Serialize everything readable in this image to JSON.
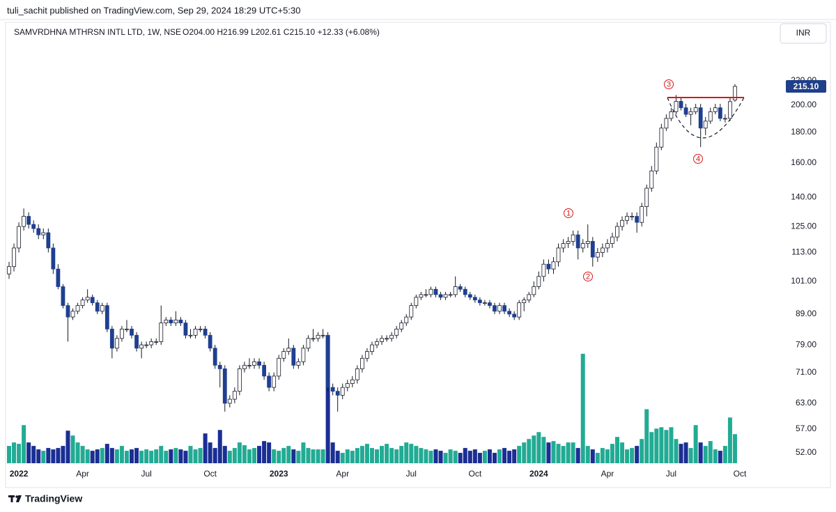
{
  "chart_data": {
    "type": "candlestick",
    "source": "tuli_sachit published on TradingView.com, Sep 29, 2024 18:29 UTC+5:30",
    "title": "SAMVRDHNA MTHRSN INTL LTD, 1W, NSE",
    "subtitle": "O204.00 H216.99 L202.61 C215.10 +12.33 (+6.08%)",
    "currency": "INR",
    "brand": "TradingView",
    "log_scale": true,
    "grid": false,
    "up_color": "#ffffff",
    "down_color": "#1f3f91",
    "wick_color": "#131722",
    "volume_up_color": "#22ab94",
    "volume_down_color": "#1a2e93",
    "resistance": 206,
    "resistance_color": "#e01414",
    "last_price_label": "215.10",
    "last_price_color": "#1e3f8a",
    "annotations": [
      {
        "text": "1"
      },
      {
        "text": "2"
      },
      {
        "text": "3"
      },
      {
        "text": "4"
      }
    ],
    "ylim": [
      49.67,
      273.5
    ],
    "yticks": [
      {
        "value": 52,
        "label": "52.00"
      },
      {
        "value": 57,
        "label": "57.00"
      },
      {
        "value": 63,
        "label": "63.00"
      },
      {
        "value": 71,
        "label": "71.00"
      },
      {
        "value": 79,
        "label": "79.00"
      },
      {
        "value": 89,
        "label": "89.00"
      },
      {
        "value": 101,
        "label": "101.00"
      },
      {
        "value": 113,
        "label": "113.00"
      },
      {
        "value": 125,
        "label": "125.00"
      },
      {
        "value": 140,
        "label": "140.00"
      },
      {
        "value": 160,
        "label": "160.00"
      },
      {
        "value": 180,
        "label": "180.00"
      },
      {
        "value": 200,
        "label": "200.00"
      },
      {
        "value": 220,
        "label": "220.00"
      }
    ],
    "categories": [
      null,
      null,
      "2022",
      null,
      null,
      null,
      null,
      null,
      null,
      null,
      null,
      null,
      null,
      null,
      null,
      "Apr",
      null,
      null,
      null,
      null,
      null,
      null,
      null,
      null,
      null,
      null,
      null,
      null,
      "Jul",
      null,
      null,
      null,
      null,
      null,
      null,
      null,
      null,
      null,
      null,
      null,
      null,
      "Oct",
      null,
      null,
      null,
      null,
      null,
      null,
      null,
      null,
      null,
      null,
      null,
      null,
      null,
      "2023",
      null,
      null,
      null,
      null,
      null,
      null,
      null,
      null,
      null,
      null,
      null,
      null,
      "Apr",
      null,
      null,
      null,
      null,
      null,
      null,
      null,
      null,
      null,
      null,
      null,
      null,
      null,
      "Jul",
      null,
      null,
      null,
      null,
      null,
      null,
      null,
      null,
      null,
      null,
      null,
      null,
      "Oct",
      null,
      null,
      null,
      null,
      null,
      null,
      null,
      null,
      null,
      null,
      null,
      null,
      "2024",
      null,
      null,
      null,
      null,
      null,
      null,
      null,
      null,
      null,
      null,
      null,
      null,
      null,
      "Apr",
      null,
      null,
      null,
      null,
      null,
      null,
      null,
      null,
      null,
      null,
      null,
      null,
      "Jul",
      null,
      null,
      null,
      null,
      null,
      null,
      null,
      null,
      null,
      null,
      null,
      null,
      null,
      "Oct"
    ],
    "open": [
      104,
      107,
      115,
      125,
      130,
      126,
      124,
      121,
      122,
      115,
      106,
      99,
      92,
      88,
      90,
      92,
      94,
      95,
      93,
      90,
      92,
      84,
      78,
      81,
      84,
      84,
      82,
      78,
      79,
      79,
      80,
      80,
      86,
      87,
      86,
      87,
      86,
      82,
      82,
      84,
      84,
      82,
      78,
      73,
      72,
      63,
      64,
      66,
      72,
      73,
      73,
      74,
      73,
      70,
      67,
      70,
      75,
      77,
      78,
      73,
      74,
      78,
      81,
      81,
      82,
      82,
      67,
      66,
      65,
      67,
      68,
      69,
      72,
      75,
      77,
      79,
      80,
      81,
      81,
      82,
      84,
      86,
      88,
      92,
      95,
      96,
      96,
      98,
      96,
      95,
      96,
      96,
      99,
      98,
      96,
      95,
      94,
      93,
      93,
      92,
      90,
      92,
      90,
      89,
      88,
      93,
      94,
      96,
      99,
      103,
      108,
      106,
      109,
      115,
      117,
      118,
      121,
      115,
      117,
      118,
      111,
      113,
      115,
      117,
      120,
      125,
      128,
      130,
      130,
      127,
      135,
      145,
      155,
      170,
      183,
      190,
      195,
      203,
      198,
      193,
      195,
      198,
      183,
      188,
      195,
      198,
      190,
      190,
      204,
      null
    ],
    "high": [
      109,
      117,
      127,
      134,
      132,
      128,
      126,
      124,
      124,
      117,
      108,
      100,
      93,
      91,
      93,
      95,
      98,
      96,
      94,
      93,
      93,
      85,
      82,
      85,
      87,
      85,
      83,
      80,
      80,
      81,
      81,
      92,
      88,
      88,
      90,
      88,
      87,
      84,
      85,
      85,
      85,
      83,
      79,
      74,
      73,
      65,
      67,
      73,
      74,
      75,
      75,
      75,
      74,
      71,
      71,
      76,
      78,
      81,
      79,
      75,
      79,
      82,
      84,
      83,
      84,
      83,
      68,
      67,
      68,
      69,
      70,
      73,
      76,
      78,
      80,
      81,
      82,
      82,
      83,
      85,
      87,
      89,
      93,
      96,
      97,
      98,
      99,
      99,
      97,
      97,
      97,
      103,
      100,
      99,
      97,
      96,
      95,
      94,
      94,
      93,
      93,
      93,
      91,
      90,
      94,
      95,
      97,
      101,
      105,
      110,
      110,
      111,
      117,
      119,
      120,
      123,
      123,
      119,
      126,
      120,
      115,
      117,
      119,
      122,
      127,
      130,
      132,
      132,
      132,
      137,
      147,
      158,
      173,
      186,
      193,
      198,
      208,
      206,
      201,
      198,
      201,
      201,
      191,
      198,
      201,
      201,
      193,
      206,
      216.99,
      null
    ],
    "low": [
      102,
      105,
      113,
      123,
      124,
      122,
      119,
      119,
      113,
      104,
      98,
      91,
      80,
      87,
      89,
      91,
      93,
      92,
      89,
      89,
      83,
      75,
      77,
      80,
      83,
      81,
      77,
      75,
      78,
      78,
      79,
      79,
      85,
      85,
      85,
      85,
      81,
      81,
      81,
      83,
      81,
      77,
      72,
      67,
      61,
      62,
      63,
      65,
      71,
      72,
      72,
      72,
      69,
      66,
      66,
      69,
      74,
      76,
      72,
      72,
      73,
      77,
      80,
      80,
      81,
      66,
      65,
      61,
      64,
      66,
      67,
      68,
      71,
      74,
      76,
      78,
      79,
      80,
      80,
      81,
      83,
      85,
      87,
      91,
      94,
      95,
      95,
      95,
      94,
      94,
      95,
      95,
      97,
      95,
      94,
      93,
      92,
      92,
      91,
      89,
      89,
      89,
      88,
      87,
      87,
      90,
      93,
      95,
      98,
      101,
      104,
      104,
      107,
      113,
      115,
      116,
      110,
      113,
      115,
      107,
      109,
      111,
      113,
      115,
      118,
      123,
      126,
      128,
      122,
      125,
      130,
      143,
      153,
      168,
      181,
      188,
      193,
      196,
      191,
      185,
      193,
      170,
      178,
      186,
      193,
      188,
      187,
      188,
      202.61,
      null
    ],
    "close": [
      107,
      115,
      125,
      130,
      126,
      124,
      121,
      122,
      115,
      106,
      99,
      92,
      88,
      90,
      92,
      94,
      95,
      93,
      90,
      92,
      84,
      78,
      81,
      84,
      84,
      82,
      78,
      79,
      79,
      80,
      80,
      86,
      87,
      86,
      87,
      86,
      82,
      82,
      84,
      84,
      82,
      78,
      73,
      72,
      63,
      64,
      66,
      72,
      73,
      73,
      74,
      73,
      70,
      67,
      70,
      75,
      77,
      78,
      73,
      74,
      78,
      81,
      81,
      82,
      82,
      67,
      66,
      65,
      67,
      68,
      69,
      72,
      75,
      77,
      79,
      80,
      81,
      81,
      82,
      84,
      86,
      88,
      92,
      95,
      96,
      96,
      98,
      96,
      95,
      96,
      96,
      99,
      98,
      96,
      95,
      94,
      93,
      93,
      92,
      90,
      92,
      90,
      89,
      88,
      93,
      94,
      96,
      99,
      103,
      108,
      106,
      109,
      115,
      117,
      118,
      121,
      115,
      117,
      118,
      111,
      113,
      115,
      117,
      120,
      125,
      128,
      130,
      130,
      127,
      135,
      145,
      155,
      170,
      183,
      190,
      195,
      203,
      198,
      193,
      195,
      198,
      183,
      188,
      195,
      198,
      190,
      190,
      202.77,
      215.1,
      null
    ],
    "volume": [
      25,
      30,
      28,
      55,
      30,
      25,
      20,
      18,
      22,
      20,
      22,
      25,
      47,
      40,
      30,
      25,
      20,
      18,
      20,
      22,
      28,
      22,
      20,
      25,
      18,
      20,
      22,
      18,
      20,
      18,
      20,
      25,
      18,
      20,
      22,
      20,
      18,
      25,
      20,
      22,
      43,
      30,
      22,
      48,
      25,
      18,
      22,
      30,
      26,
      20,
      22,
      25,
      32,
      30,
      20,
      18,
      22,
      25,
      20,
      18,
      30,
      22,
      20,
      20,
      20,
      185,
      30,
      18,
      15,
      20,
      18,
      22,
      25,
      28,
      22,
      20,
      25,
      28,
      22,
      20,
      25,
      30,
      28,
      25,
      22,
      20,
      18,
      20,
      18,
      15,
      20,
      18,
      15,
      22,
      18,
      20,
      15,
      18,
      20,
      15,
      20,
      22,
      18,
      20,
      25,
      30,
      35,
      40,
      45,
      38,
      30,
      32,
      28,
      25,
      30,
      30,
      22,
      158,
      25,
      20,
      15,
      22,
      20,
      28,
      38,
      30,
      20,
      22,
      25,
      35,
      78,
      45,
      50,
      52,
      48,
      52,
      35,
      28,
      30,
      22,
      55,
      30,
      25,
      32,
      20,
      18,
      25,
      66,
      42,
      null
    ]
  }
}
